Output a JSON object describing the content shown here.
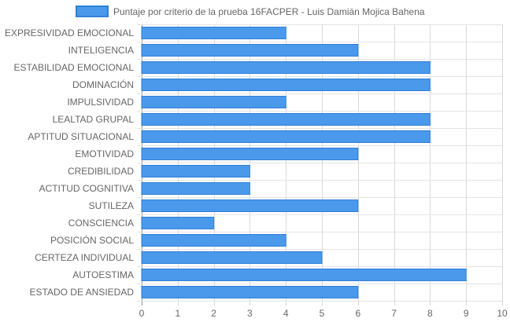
{
  "chart_data": {
    "type": "bar",
    "orientation": "horizontal",
    "legend_position": "top",
    "grid": true,
    "xlim": [
      0,
      10
    ],
    "x_ticks": [
      0,
      1,
      2,
      3,
      4,
      5,
      6,
      7,
      8,
      9,
      10
    ],
    "series": [
      {
        "name": "Puntaje por criterio de la prueba 16FACPER - Luis Damián Mojica Bahena",
        "color": "#4a99eb",
        "border_color": "#2f7fd6"
      }
    ],
    "categories": [
      "EXPRESIVIDAD EMOCIONAL",
      "INTELIGENCIA",
      "ESTABILIDAD EMOCIONAL",
      "DOMINACIÓN",
      "IMPULSIVIDAD",
      "LEALTAD GRUPAL",
      "APTITUD SITUACIONAL",
      "EMOTIVIDAD",
      "CREDIBILIDAD",
      "ACTITUD COGNITIVA",
      "SUTILEZA",
      "CONSCIENCIA",
      "POSICIÓN SOCIAL",
      "CERTEZA INDIVIDUAL",
      "AUTOESTIMA",
      "ESTADO DE ANSIEDAD"
    ],
    "values": [
      4,
      6,
      8,
      8,
      4,
      8,
      8,
      6,
      3,
      3,
      6,
      2,
      4,
      5,
      9,
      6
    ]
  }
}
